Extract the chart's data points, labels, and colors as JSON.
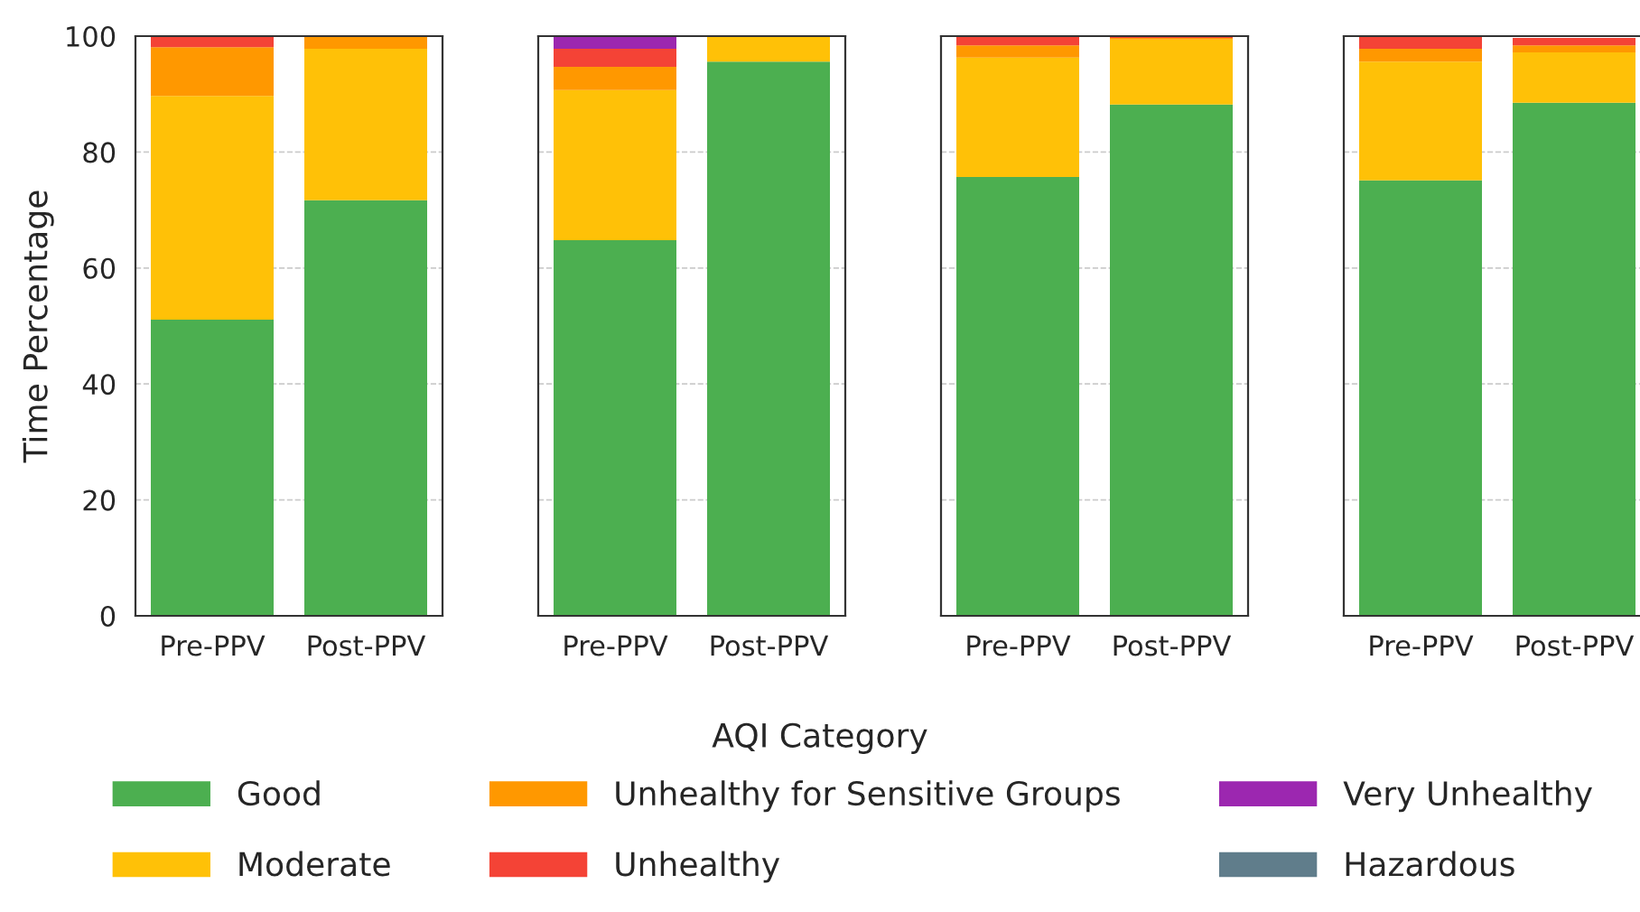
{
  "chart_data": [
    {
      "type": "bar",
      "stacked": true,
      "categories": [
        "Pre-PPV",
        "Post-PPV"
      ],
      "ylabel": "Time Percentage",
      "ylim": [
        0,
        100
      ],
      "yticks": [
        0,
        20,
        40,
        60,
        80,
        100
      ],
      "grid": "y",
      "legend": "bottom",
      "series": [
        {
          "name": "Good",
          "color": "#4caf50",
          "values": [
            51.1,
            71.7
          ]
        },
        {
          "name": "Moderate",
          "color": "#ffc107",
          "values": [
            38.6,
            26.1
          ]
        },
        {
          "name": "Unhealthy for Sensitive Groups",
          "color": "#ff9800",
          "values": [
            8.4,
            2.2
          ]
        },
        {
          "name": "Unhealthy",
          "color": "#f44336",
          "values": [
            1.9,
            0
          ]
        },
        {
          "name": "Very Unhealthy",
          "color": "#9c27b0",
          "values": [
            0,
            0
          ]
        },
        {
          "name": "Hazardous",
          "color": "#607d8b",
          "values": [
            0,
            0
          ]
        }
      ]
    },
    {
      "type": "bar",
      "stacked": true,
      "categories": [
        "Pre-PPV",
        "Post-PPV"
      ],
      "xlabel": "AQI Category",
      "ylim": [
        0,
        100
      ],
      "yticks": [
        {
          "value": 0,
          "label": null
        },
        {
          "value": 20,
          "label": null
        },
        {
          "value": 40,
          "label": null
        },
        {
          "value": 60,
          "label": null
        },
        {
          "value": 80,
          "label": null
        },
        {
          "value": 100,
          "label": null
        }
      ],
      "grid": "y",
      "tick_labels": "x",
      "series": [
        {
          "color": "#4caf50",
          "values": [
            64.8,
            95.6
          ]
        },
        {
          "color": "#ffc107",
          "values": [
            25.9,
            4.4
          ]
        },
        {
          "color": "#ff9800",
          "values": [
            4.0,
            0
          ]
        },
        {
          "color": "#f44336",
          "values": [
            3.1,
            0
          ]
        },
        {
          "color": "#9c27b0",
          "values": [
            2.2,
            0
          ]
        },
        {
          "color": "#607d8b",
          "values": [
            0,
            0
          ]
        }
      ]
    },
    {
      "type": "bar",
      "stacked": true,
      "categories": [
        "Pre-PPV",
        "Post-PPV"
      ],
      "ylim": [
        0,
        100
      ],
      "yticks": [
        {
          "value": 0,
          "label": null
        },
        {
          "value": 20,
          "label": null
        },
        {
          "value": 40,
          "label": null
        },
        {
          "value": 60,
          "label": null
        },
        {
          "value": 80,
          "label": null
        },
        {
          "value": 100,
          "label": null
        }
      ],
      "grid": "y",
      "tick_labels": "x",
      "series": [
        {
          "color": "#4caf50",
          "values": [
            75.7,
            88.2
          ]
        },
        {
          "color": "#ffc107",
          "values": [
            20.6,
            11.2
          ]
        },
        {
          "color": "#ff9800",
          "values": [
            2.1,
            0.3
          ]
        },
        {
          "color": "#f44336",
          "values": [
            1.6,
            0.3
          ]
        },
        {
          "color": "#9c27b0",
          "values": [
            0,
            0
          ]
        },
        {
          "color": "#607d8b",
          "values": [
            0,
            0
          ]
        }
      ]
    },
    {
      "type": "bar",
      "stacked": true,
      "categories": [
        "Pre-PPV",
        "Post-PPV"
      ],
      "ylim": [
        0,
        100
      ],
      "yticks": [
        {
          "value": 0,
          "label": null
        },
        {
          "value": 20,
          "label": null
        },
        {
          "value": 40,
          "label": null
        },
        {
          "value": 60,
          "label": null
        },
        {
          "value": 80,
          "label": null
        },
        {
          "value": 100,
          "label": null
        }
      ],
      "grid": "y",
      "tick_labels": "x",
      "series": [
        {
          "color": "#4caf50",
          "values": [
            75.1,
            88.5
          ]
        },
        {
          "color": "#ffc107",
          "values": [
            20.5,
            8.7
          ]
        },
        {
          "color": "#ff9800",
          "values": [
            2.2,
            1.2
          ]
        },
        {
          "color": "#f44336",
          "values": [
            2.2,
            1.3
          ]
        },
        {
          "color": "#9c27b0",
          "values": [
            0,
            0
          ]
        },
        {
          "color": "#607d8b",
          "values": [
            0,
            0
          ]
        }
      ]
    }
  ]
}
